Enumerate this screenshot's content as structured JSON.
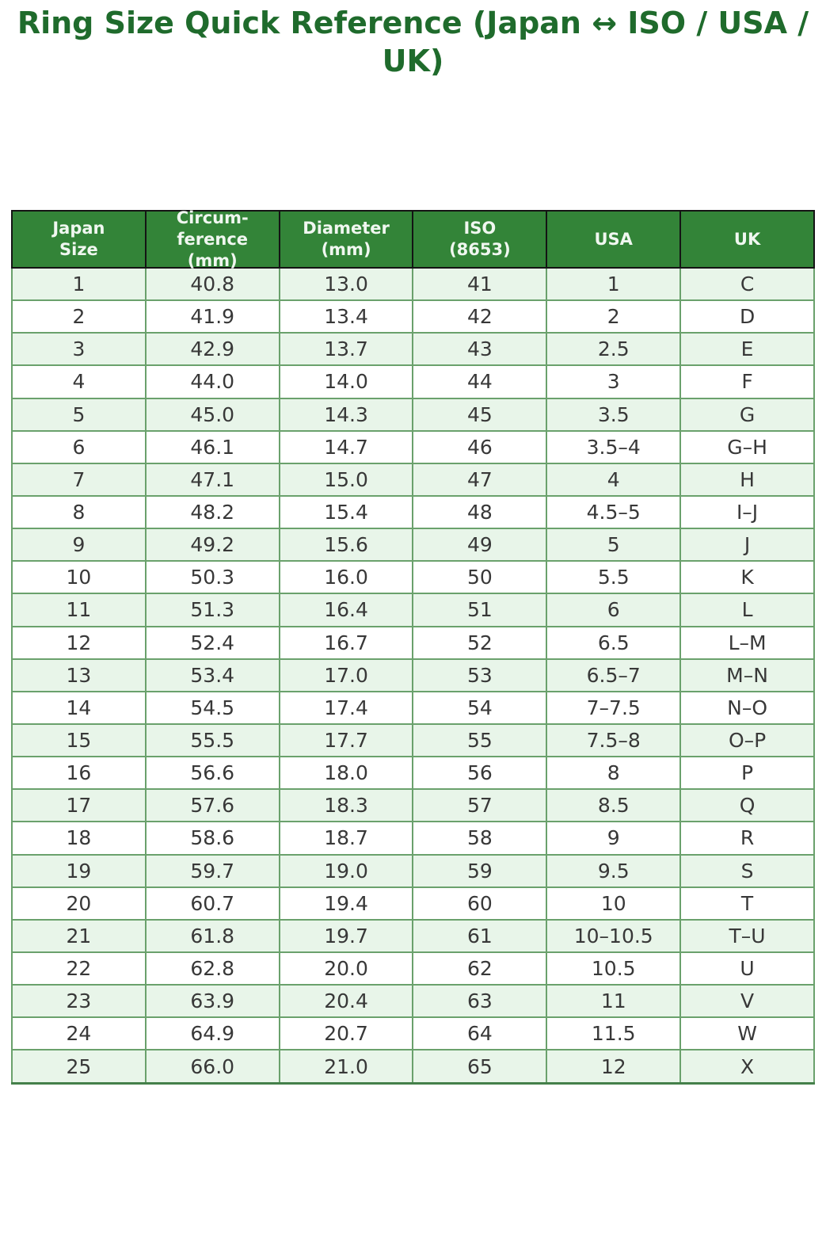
{
  "title": "Ring Size Quick Reference (Japan ↔ ISO / USA / UK)",
  "colors": {
    "title_text": "#1f6b2c",
    "header_bg": "#338438",
    "header_text": "#f0f7f0",
    "header_border": "#141414",
    "row_odd_bg": "#e8f5e9",
    "row_even_bg": "#ffffff",
    "cell_border": "#6aa16c",
    "body_text": "#383838"
  },
  "chart_data": {
    "type": "table",
    "title": "Ring Size Quick Reference (Japan ↔ ISO / USA / UK)",
    "columns": [
      "Japan\nSize",
      "Circum-\nference\n(mm)",
      "Diameter\n(mm)",
      "ISO\n(8653)",
      "USA",
      "UK"
    ],
    "rows": [
      [
        "1",
        "40.8",
        "13.0",
        "41",
        "1",
        "C"
      ],
      [
        "2",
        "41.9",
        "13.4",
        "42",
        "2",
        "D"
      ],
      [
        "3",
        "42.9",
        "13.7",
        "43",
        "2.5",
        "E"
      ],
      [
        "4",
        "44.0",
        "14.0",
        "44",
        "3",
        "F"
      ],
      [
        "5",
        "45.0",
        "14.3",
        "45",
        "3.5",
        "G"
      ],
      [
        "6",
        "46.1",
        "14.7",
        "46",
        "3.5–4",
        "G–H"
      ],
      [
        "7",
        "47.1",
        "15.0",
        "47",
        "4",
        "H"
      ],
      [
        "8",
        "48.2",
        "15.4",
        "48",
        "4.5–5",
        "I–J"
      ],
      [
        "9",
        "49.2",
        "15.6",
        "49",
        "5",
        "J"
      ],
      [
        "10",
        "50.3",
        "16.0",
        "50",
        "5.5",
        "K"
      ],
      [
        "11",
        "51.3",
        "16.4",
        "51",
        "6",
        "L"
      ],
      [
        "12",
        "52.4",
        "16.7",
        "52",
        "6.5",
        "L–M"
      ],
      [
        "13",
        "53.4",
        "17.0",
        "53",
        "6.5–7",
        "M–N"
      ],
      [
        "14",
        "54.5",
        "17.4",
        "54",
        "7–7.5",
        "N–O"
      ],
      [
        "15",
        "55.5",
        "17.7",
        "55",
        "7.5–8",
        "O–P"
      ],
      [
        "16",
        "56.6",
        "18.0",
        "56",
        "8",
        "P"
      ],
      [
        "17",
        "57.6",
        "18.3",
        "57",
        "8.5",
        "Q"
      ],
      [
        "18",
        "58.6",
        "18.7",
        "58",
        "9",
        "R"
      ],
      [
        "19",
        "59.7",
        "19.0",
        "59",
        "9.5",
        "S"
      ],
      [
        "20",
        "60.7",
        "19.4",
        "60",
        "10",
        "T"
      ],
      [
        "21",
        "61.8",
        "19.7",
        "61",
        "10–10.5",
        "T–U"
      ],
      [
        "22",
        "62.8",
        "20.0",
        "62",
        "10.5",
        "U"
      ],
      [
        "23",
        "63.9",
        "20.4",
        "63",
        "11",
        "V"
      ],
      [
        "24",
        "64.9",
        "20.7",
        "64",
        "11.5",
        "W"
      ],
      [
        "25",
        "66.0",
        "21.0",
        "65",
        "12",
        "X"
      ]
    ]
  }
}
